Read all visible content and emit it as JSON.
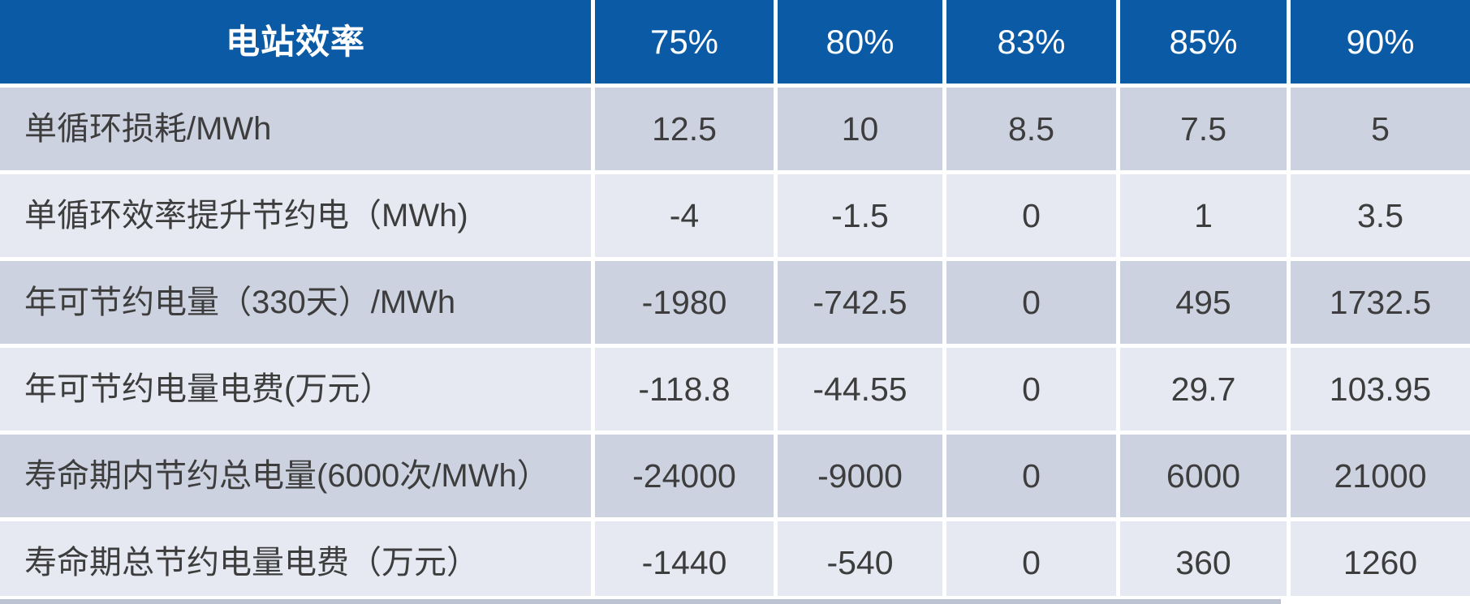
{
  "chart_data": {
    "type": "table",
    "title": "电站效率",
    "corner_label": "电站效率",
    "column_headers": [
      "75%",
      "80%",
      "83%",
      "85%",
      "90%"
    ],
    "rows": [
      {
        "label": "单循环损耗/MWh",
        "values": [
          12.5,
          10,
          8.5,
          7.5,
          5
        ]
      },
      {
        "label": "单循环效率提升节约电（MWh)",
        "values": [
          -4,
          -1.5,
          0,
          1,
          3.5
        ]
      },
      {
        "label": "年可节约电量（330天）/MWh",
        "values": [
          -1980,
          -742.5,
          0,
          495,
          1732.5
        ]
      },
      {
        "label": "年可节约电量电费(万元）",
        "values": [
          -118.8,
          -44.55,
          0,
          29.7,
          103.95
        ]
      },
      {
        "label": "寿命期内节约总电量(6000次/MWh）",
        "values": [
          -24000,
          -9000,
          0,
          6000,
          21000
        ]
      },
      {
        "label": "寿命期总节约电量电费（万元）",
        "values": [
          -1440,
          -540,
          0,
          360,
          1260
        ]
      }
    ],
    "layout": {
      "header_position": "top-row",
      "label_column": "left",
      "row_striping": "dark-light-alternating"
    }
  },
  "colors": {
    "header_bg": "#0b5aa5",
    "header_text": "#ffffff",
    "row_dark_bg": "#cdd2e0",
    "row_light_bg": "#e7e9f2",
    "body_text": "#3d3d3d",
    "divider": "#ffffff",
    "bottom_strip": "#bcc2d1"
  }
}
